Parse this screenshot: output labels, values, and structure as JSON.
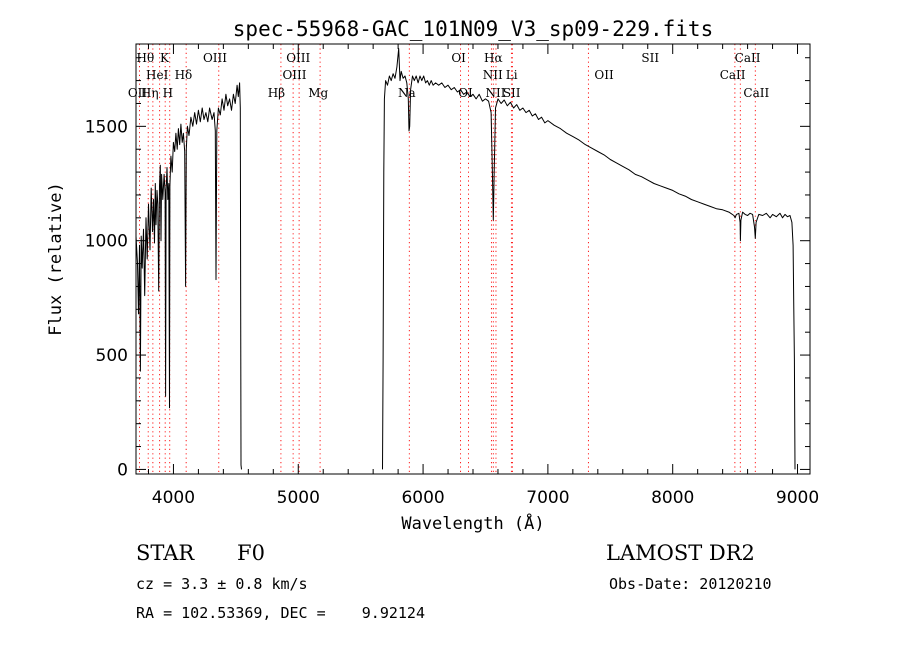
{
  "chart_data": {
    "type": "line",
    "title": "spec-55968-GAC_101N09_V3_sp09-229.fits",
    "xlabel": "Wavelength (Å)",
    "ylabel": "Flux (relative)",
    "xlim": [
      3700,
      9100
    ],
    "ylim": [
      -20,
      1860
    ],
    "xticks": [
      4000,
      5000,
      6000,
      7000,
      8000,
      9000
    ],
    "xtick_labels": [
      "4000",
      "5000",
      "6000",
      "7000",
      "8000",
      "9000"
    ],
    "yticks": [
      0,
      500,
      1000,
      1500
    ],
    "ytick_labels": [
      "0",
      "500",
      "1000",
      "1500"
    ],
    "grid": false,
    "line_color": "#000000",
    "line_marker_color": "#ff0000",
    "series": [
      {
        "segments": [
          [
            [
              3700,
              1020
            ],
            [
              3712,
              900
            ],
            [
              3720,
              680
            ],
            [
              3728,
              980
            ],
            [
              3735,
              430
            ],
            [
              3742,
              1020
            ],
            [
              3750,
              880
            ],
            [
              3760,
              1050
            ],
            [
              3770,
              760
            ],
            [
              3780,
              1100
            ],
            [
              3790,
              920
            ],
            [
              3800,
              1160
            ],
            [
              3812,
              960
            ],
            [
              3822,
              1230
            ],
            [
              3832,
              1040
            ],
            [
              3840,
              1180
            ],
            [
              3848,
              990
            ],
            [
              3855,
              1250
            ],
            [
              3860,
              1070
            ],
            [
              3868,
              1220
            ],
            [
              3875,
              1160
            ],
            [
              3882,
              780
            ],
            [
              3888,
              1240
            ],
            [
              3895,
              1330
            ],
            [
              3900,
              1000
            ],
            [
              3905,
              1290
            ],
            [
              3915,
              1180
            ],
            [
              3925,
              1290
            ],
            [
              3933,
              1210
            ],
            [
              3937,
              320
            ],
            [
              3941,
              1220
            ],
            [
              3948,
              1320
            ],
            [
              3955,
              1180
            ],
            [
              3963,
              1250
            ],
            [
              3968,
              270
            ],
            [
              3972,
              1240
            ],
            [
              3980,
              1370
            ],
            [
              3990,
              1300
            ],
            [
              4000,
              1430
            ],
            [
              4010,
              1390
            ],
            [
              4020,
              1470
            ],
            [
              4030,
              1400
            ],
            [
              4040,
              1490
            ],
            [
              4050,
              1420
            ],
            [
              4060,
              1510
            ],
            [
              4070,
              1430
            ],
            [
              4080,
              1470
            ],
            [
              4090,
              1390
            ],
            [
              4097,
              800
            ],
            [
              4103,
              1400
            ],
            [
              4112,
              1500
            ],
            [
              4125,
              1460
            ],
            [
              4140,
              1540
            ],
            [
              4155,
              1500
            ],
            [
              4170,
              1560
            ],
            [
              4185,
              1510
            ],
            [
              4200,
              1570
            ],
            [
              4215,
              1520
            ],
            [
              4230,
              1580
            ],
            [
              4245,
              1530
            ],
            [
              4260,
              1560
            ],
            [
              4275,
              1520
            ],
            [
              4290,
              1580
            ],
            [
              4310,
              1530
            ],
            [
              4325,
              1560
            ],
            [
              4335,
              1480
            ],
            [
              4341,
              830
            ],
            [
              4347,
              1480
            ],
            [
              4360,
              1580
            ],
            [
              4375,
              1550
            ],
            [
              4390,
              1620
            ],
            [
              4405,
              1570
            ],
            [
              4420,
              1640
            ],
            [
              4435,
              1590
            ],
            [
              4450,
              1620
            ],
            [
              4465,
              1570
            ],
            [
              4480,
              1640
            ],
            [
              4495,
              1600
            ],
            [
              4510,
              1680
            ],
            [
              4520,
              1630
            ],
            [
              4530,
              1690
            ],
            [
              4536,
              1580
            ],
            [
              4541,
              20
            ],
            [
              4545,
              0
            ]
          ],
          [
            [
              5675,
              0
            ],
            [
              5680,
              480
            ],
            [
              5685,
              1300
            ],
            [
              5690,
              1620
            ],
            [
              5700,
              1700
            ],
            [
              5715,
              1680
            ],
            [
              5730,
              1720
            ],
            [
              5745,
              1700
            ],
            [
              5760,
              1730
            ],
            [
              5775,
              1710
            ],
            [
              5790,
              1760
            ],
            [
              5805,
              1840
            ],
            [
              5815,
              1700
            ],
            [
              5825,
              1740
            ],
            [
              5840,
              1710
            ],
            [
              5855,
              1720
            ],
            [
              5870,
              1690
            ],
            [
              5882,
              1620
            ],
            [
              5887,
              1480
            ],
            [
              5893,
              1500
            ],
            [
              5900,
              1660
            ],
            [
              5915,
              1720
            ],
            [
              5930,
              1700
            ],
            [
              5945,
              1720
            ],
            [
              5960,
              1690
            ],
            [
              5975,
              1720
            ],
            [
              5990,
              1700
            ],
            [
              6005,
              1720
            ],
            [
              6020,
              1690
            ],
            [
              6035,
              1700
            ],
            [
              6050,
              1680
            ],
            [
              6065,
              1700
            ],
            [
              6080,
              1680
            ],
            [
              6100,
              1690
            ],
            [
              6125,
              1680
            ],
            [
              6150,
              1690
            ],
            [
              6175,
              1670
            ],
            [
              6200,
              1680
            ],
            [
              6225,
              1660
            ],
            [
              6250,
              1670
            ],
            [
              6275,
              1650
            ],
            [
              6300,
              1660
            ],
            [
              6325,
              1640
            ],
            [
              6350,
              1650
            ],
            [
              6375,
              1630
            ],
            [
              6400,
              1640
            ],
            [
              6425,
              1620
            ],
            [
              6450,
              1640
            ],
            [
              6475,
              1610
            ],
            [
              6500,
              1620
            ],
            [
              6525,
              1610
            ],
            [
              6545,
              1560
            ],
            [
              6555,
              1320
            ],
            [
              6563,
              1090
            ],
            [
              6570,
              1300
            ],
            [
              6580,
              1580
            ],
            [
              6600,
              1620
            ],
            [
              6625,
              1600
            ],
            [
              6650,
              1615
            ],
            [
              6675,
              1590
            ],
            [
              6700,
              1605
            ],
            [
              6725,
              1580
            ],
            [
              6750,
              1595
            ],
            [
              6775,
              1570
            ],
            [
              6800,
              1580
            ],
            [
              6825,
              1560
            ],
            [
              6850,
              1570
            ],
            [
              6875,
              1545
            ],
            [
              6900,
              1555
            ],
            [
              6925,
              1530
            ],
            [
              6950,
              1540
            ],
            [
              6975,
              1515
            ],
            [
              7000,
              1525
            ],
            [
              7050,
              1505
            ],
            [
              7100,
              1490
            ],
            [
              7150,
              1470
            ],
            [
              7200,
              1455
            ],
            [
              7250,
              1440
            ],
            [
              7300,
              1420
            ],
            [
              7350,
              1405
            ],
            [
              7400,
              1390
            ],
            [
              7450,
              1375
            ],
            [
              7500,
              1355
            ],
            [
              7550,
              1340
            ],
            [
              7600,
              1325
            ],
            [
              7650,
              1310
            ],
            [
              7700,
              1290
            ],
            [
              7750,
              1280
            ],
            [
              7800,
              1265
            ],
            [
              7850,
              1250
            ],
            [
              7900,
              1240
            ],
            [
              7950,
              1230
            ],
            [
              8000,
              1220
            ],
            [
              8050,
              1205
            ],
            [
              8100,
              1195
            ],
            [
              8150,
              1180
            ],
            [
              8200,
              1170
            ],
            [
              8250,
              1160
            ],
            [
              8300,
              1150
            ],
            [
              8350,
              1140
            ],
            [
              8400,
              1135
            ],
            [
              8450,
              1125
            ],
            [
              8490,
              1110
            ],
            [
              8500,
              1100
            ],
            [
              8510,
              1115
            ],
            [
              8530,
              1120
            ],
            [
              8540,
              1080
            ],
            [
              8542,
              1000
            ],
            [
              8546,
              1090
            ],
            [
              8560,
              1125
            ],
            [
              8580,
              1115
            ],
            [
              8600,
              1110
            ],
            [
              8620,
              1120
            ],
            [
              8640,
              1115
            ],
            [
              8655,
              1060
            ],
            [
              8662,
              1010
            ],
            [
              8668,
              1080
            ],
            [
              8690,
              1115
            ],
            [
              8720,
              1110
            ],
            [
              8750,
              1120
            ],
            [
              8780,
              1100
            ],
            [
              8800,
              1115
            ],
            [
              8830,
              1105
            ],
            [
              8860,
              1120
            ],
            [
              8880,
              1100
            ],
            [
              8900,
              1115
            ],
            [
              8920,
              1105
            ],
            [
              8940,
              1110
            ],
            [
              8955,
              1080
            ],
            [
              8965,
              980
            ],
            [
              8970,
              700
            ],
            [
              8975,
              480
            ],
            [
              8980,
              0
            ]
          ]
        ]
      }
    ],
    "line_markers": [
      {
        "x": 3728,
        "rows": [
          "OII"
        ]
      },
      {
        "x": 3798,
        "rows": [
          "Hθ"
        ]
      },
      {
        "x": 3835,
        "rows": [
          "Hη"
        ]
      },
      {
        "x": 3889,
        "rows": [
          "HeI"
        ]
      },
      {
        "x": 3934,
        "rows": [
          "K"
        ]
      },
      {
        "x": 3970,
        "rows": [
          "H"
        ]
      },
      {
        "x": 4102,
        "rows": [
          "Hδ"
        ]
      },
      {
        "x": 4363,
        "rows": [
          "OIII"
        ]
      },
      {
        "x": 4861,
        "rows": [
          "Hβ"
        ]
      },
      {
        "x": 4959,
        "rows": [
          "OIII"
        ]
      },
      {
        "x": 5007,
        "rows": [
          "OIII"
        ]
      },
      {
        "x": 5175,
        "rows": [
          "Mg"
        ]
      },
      {
        "x": 5890,
        "rows": [
          "Na"
        ]
      },
      {
        "x": 6300,
        "rows": [
          "OI"
        ]
      },
      {
        "x": 6364,
        "rows": [
          "OI"
        ]
      },
      {
        "x": 6548,
        "rows": [
          "NII"
        ]
      },
      {
        "x": 6563,
        "rows": [
          "Hα"
        ]
      },
      {
        "x": 6584,
        "rows": [
          "NII"
        ]
      },
      {
        "x": 6708,
        "rows": [
          "Li"
        ]
      },
      {
        "x": 6716,
        "rows": [
          "SII"
        ]
      },
      {
        "x": 7325,
        "rows": [
          "OII"
        ]
      },
      {
        "x": 8498,
        "rows": [
          "CaII"
        ]
      },
      {
        "x": 8542,
        "rows": [
          "CaII"
        ]
      },
      {
        "x": 8662,
        "rows": [
          "CaII"
        ]
      }
    ],
    "line_labels": [
      {
        "text": "Hθ",
        "x": 3775,
        "row": 0
      },
      {
        "text": "K",
        "x": 3928,
        "row": 0
      },
      {
        "text": "OIII",
        "x": 4333,
        "row": 0
      },
      {
        "text": "OIII",
        "x": 5000,
        "row": 0
      },
      {
        "text": "OI",
        "x": 6285,
        "row": 0
      },
      {
        "text": "Hα",
        "x": 6563,
        "row": 0
      },
      {
        "text": "SII",
        "x": 7820,
        "row": 0
      },
      {
        "text": "CaII",
        "x": 8600,
        "row": 0
      },
      {
        "text": "HeI",
        "x": 3870,
        "row": 1
      },
      {
        "text": "Hδ",
        "x": 4080,
        "row": 1
      },
      {
        "text": "OIII",
        "x": 4970,
        "row": 1
      },
      {
        "text": "NII",
        "x": 6558,
        "row": 1
      },
      {
        "text": "Li",
        "x": 6710,
        "row": 1
      },
      {
        "text": "OII",
        "x": 7450,
        "row": 1
      },
      {
        "text": "CaII",
        "x": 8480,
        "row": 1
      },
      {
        "text": "OII",
        "x": 3712,
        "row": 2
      },
      {
        "text": "Hη",
        "x": 3810,
        "row": 2
      },
      {
        "text": "H",
        "x": 3955,
        "row": 2
      },
      {
        "text": "Hβ",
        "x": 4825,
        "row": 2
      },
      {
        "text": "Mg",
        "x": 5160,
        "row": 2
      },
      {
        "text": "Na",
        "x": 5870,
        "row": 2
      },
      {
        "text": "OI",
        "x": 6340,
        "row": 2
      },
      {
        "text": "NII",
        "x": 6580,
        "row": 2
      },
      {
        "text": "SII",
        "x": 6710,
        "row": 2
      },
      {
        "text": "CaII",
        "x": 8670,
        "row": 2
      }
    ]
  },
  "footer": {
    "object_class": "STAR",
    "subclass": "F0",
    "survey": "LAMOST DR2",
    "redshift": "cz = 3.3 ± 0.8 km/s",
    "obs_date": "Obs-Date: 20120210",
    "coords": "RA = 102.53369, DEC =    9.92124"
  }
}
